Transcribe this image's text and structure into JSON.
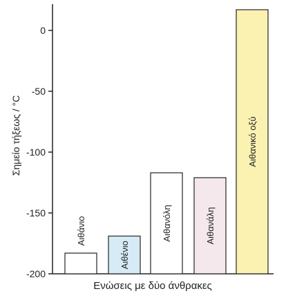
{
  "chart_data": {
    "type": "bar",
    "categories": [
      "Αιθάνιο",
      "Αιθένιο",
      "Αιθανόλη",
      "Αιθανάλη",
      "Αιθανικό οξύ"
    ],
    "values": [
      -183,
      -169,
      -117,
      -121,
      17
    ],
    "bar_colors": [
      "#ffffff",
      "#d6ebf6",
      "#ffffff",
      "#f4e8ec",
      "#fbf2b2"
    ],
    "xlabel": "Ενώσεις με δύο άνθρακες",
    "ylabel": "Σημείο τήξεως / °C",
    "ylim": [
      -200,
      20
    ],
    "yticks": [
      0,
      -50,
      -100,
      -150,
      -200
    ],
    "grid": false
  }
}
